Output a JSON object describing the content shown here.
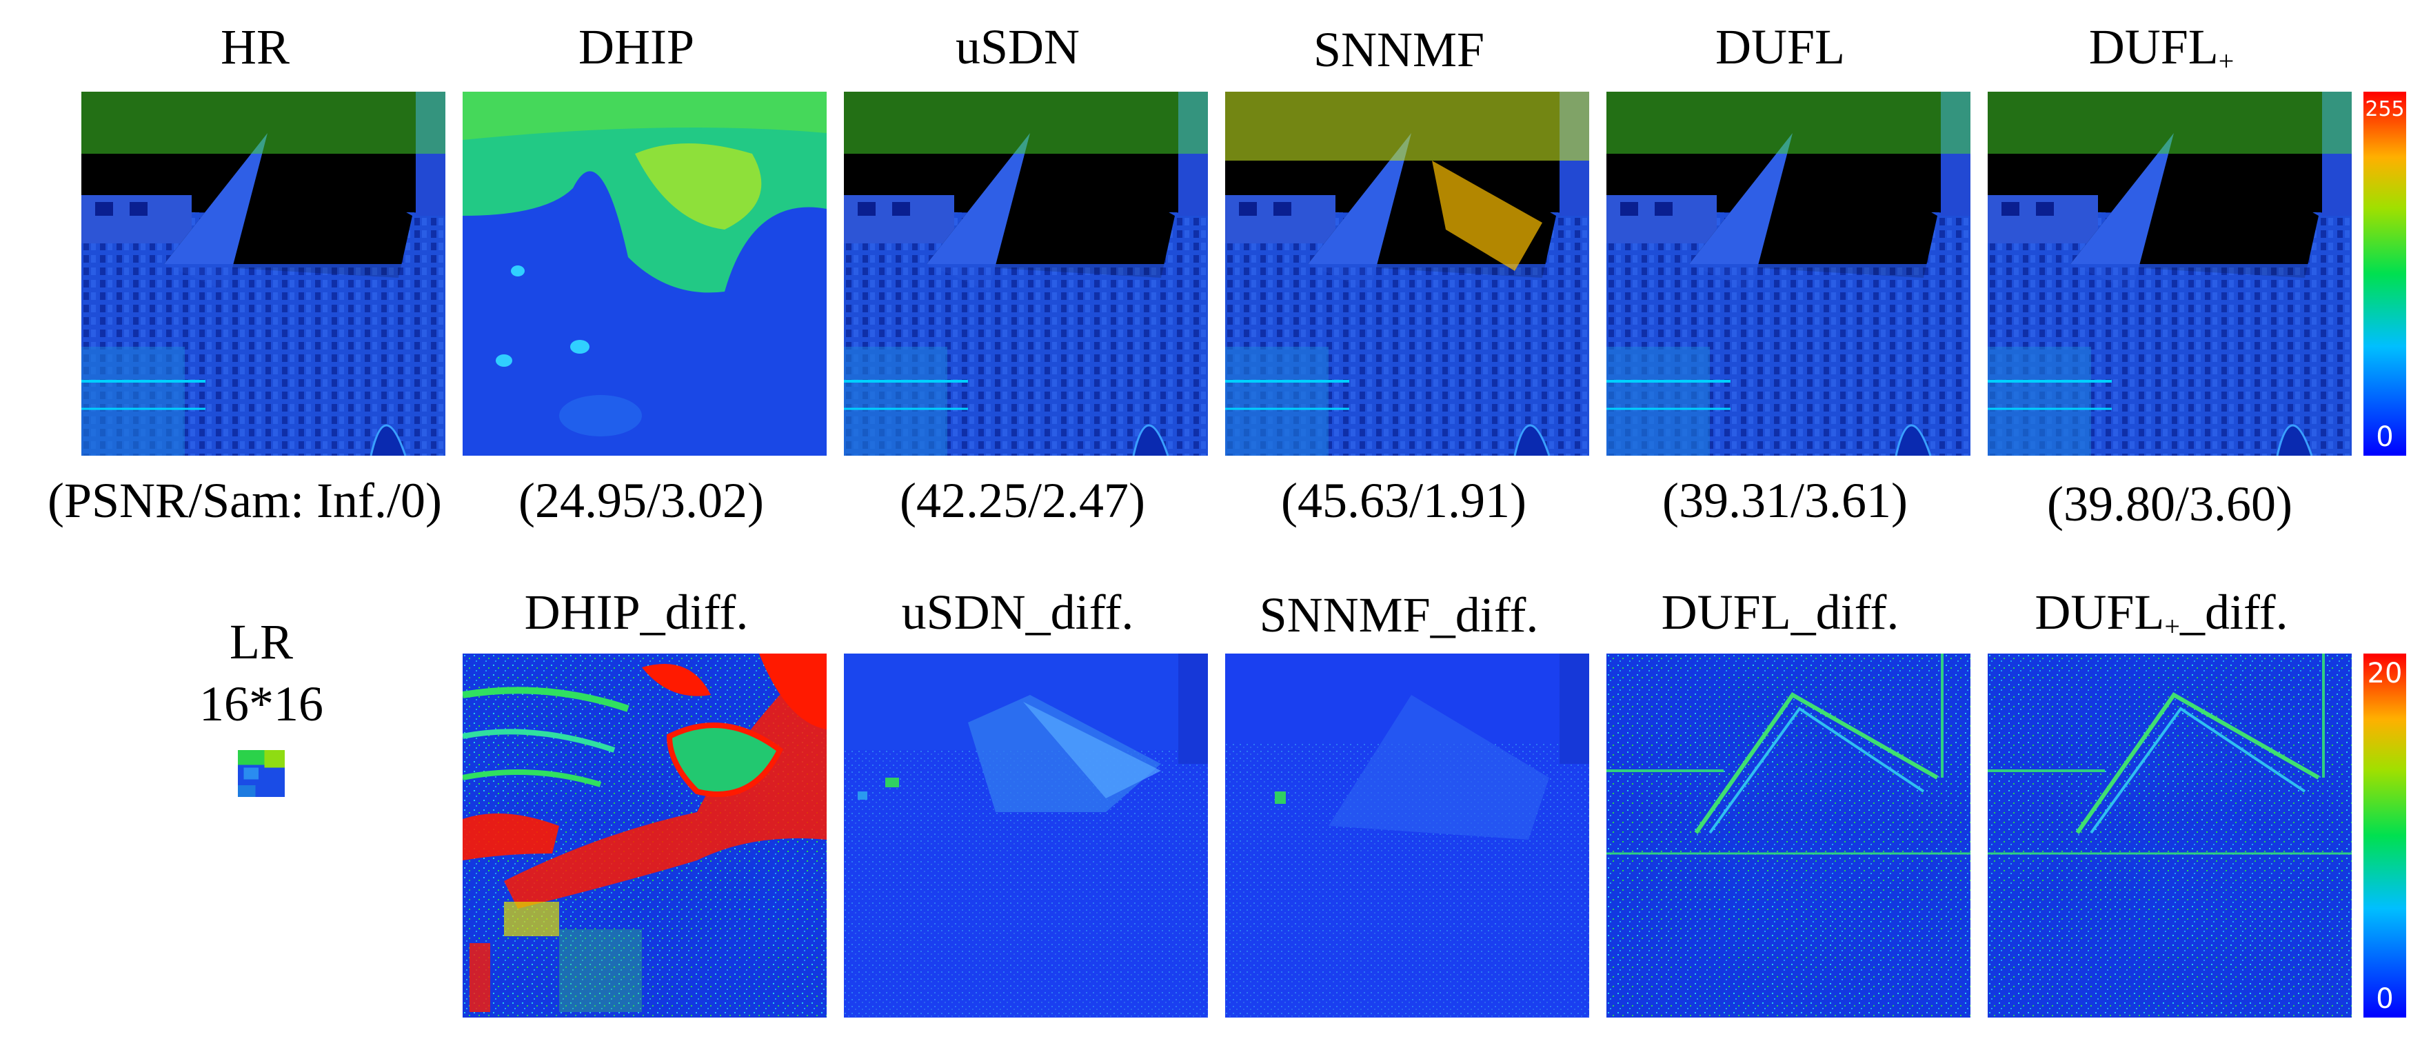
{
  "figure": {
    "top_row": [
      {
        "key": "hr",
        "title": "HR",
        "metric": "(PSNR/Sam: Inf./0)"
      },
      {
        "key": "dhip",
        "title": "DHIP",
        "metric": "(24.95/3.02)"
      },
      {
        "key": "usdn",
        "title": "uSDN",
        "metric": "(42.25/2.47)"
      },
      {
        "key": "snnmf",
        "title": "SNNMF",
        "metric": "(45.63/1.91)"
      },
      {
        "key": "dufl",
        "title": "DUFL",
        "metric": "(39.31/3.61)"
      },
      {
        "key": "duflp",
        "title": "DUFL",
        "title_sub": "+",
        "metric": "(39.80/3.60)"
      }
    ],
    "bottom_row": [
      {
        "key": "dhip_diff",
        "title": "DHIP_diff."
      },
      {
        "key": "usdn_diff",
        "title": "uSDN_diff."
      },
      {
        "key": "snnmf_diff",
        "title": "SNNMF_diff."
      },
      {
        "key": "dufl_diff",
        "title": "DUFL_diff."
      },
      {
        "key": "duflp_diff",
        "title": "DUFL",
        "title_sub": "+",
        "title_suffix": "_diff."
      }
    ],
    "lr": {
      "label": "LR",
      "size": "16*16"
    },
    "colorbar_top": {
      "max": "255",
      "min": "0"
    },
    "colorbar_bottom": {
      "max": "20",
      "min": "0"
    }
  }
}
